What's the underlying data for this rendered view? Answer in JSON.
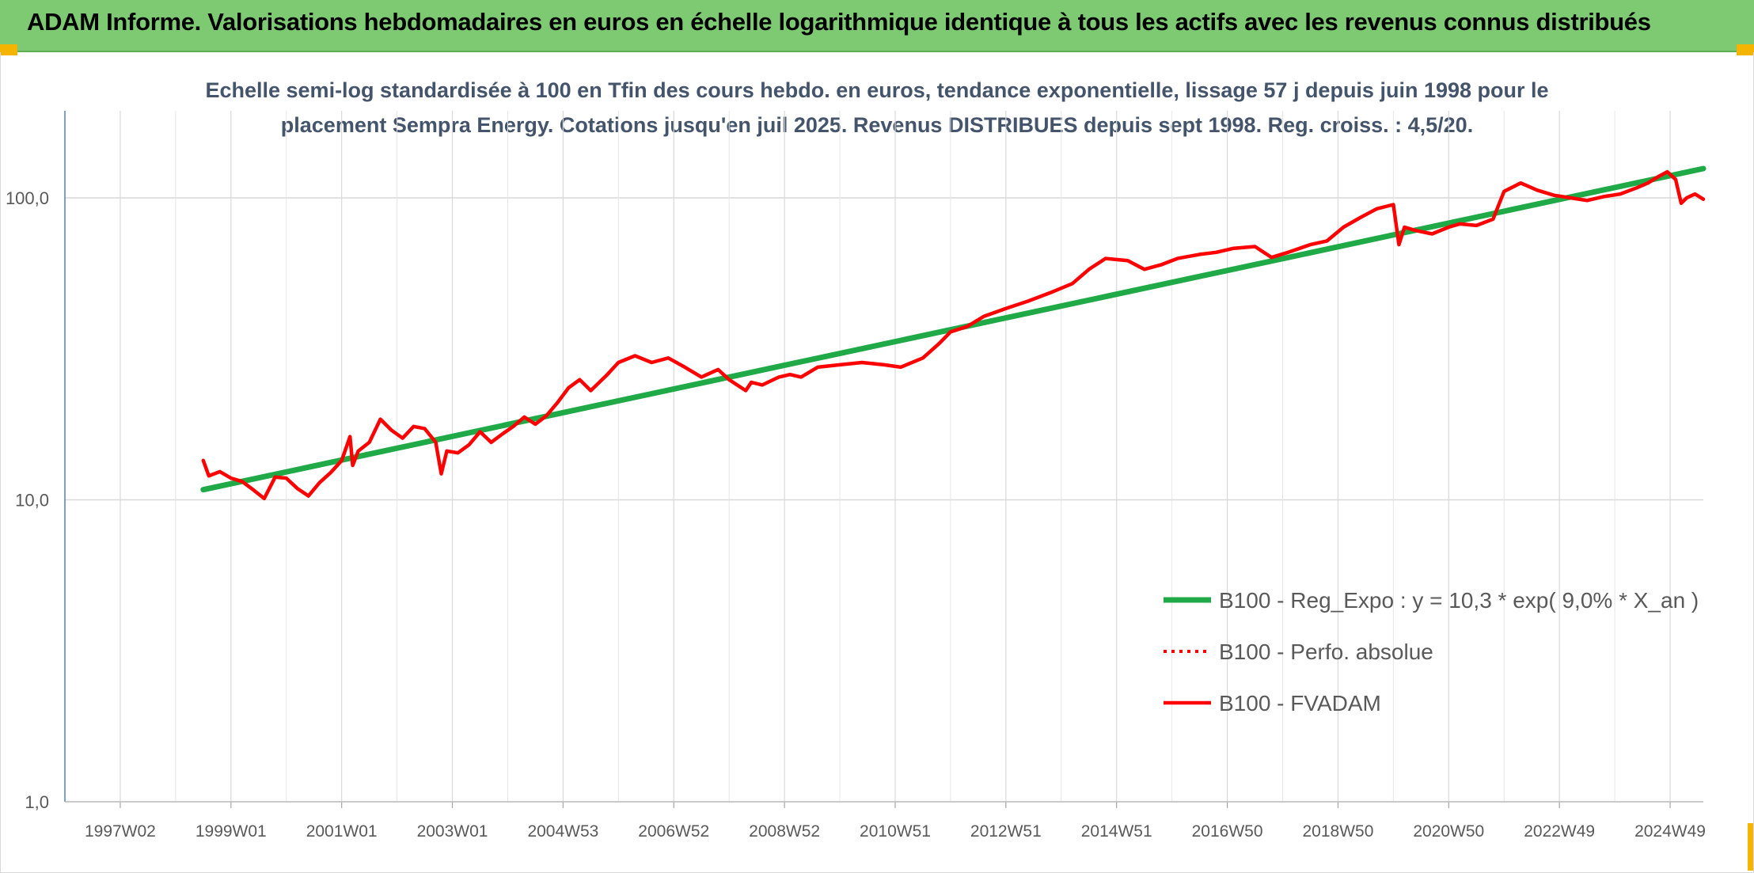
{
  "header": {
    "title": "ADAM Informe. Valorisations hebdomadaires en euros en échelle logarithmique identique à tous les actifs avec les revenus connus distribués"
  },
  "colors": {
    "header_bg": "#7dca72",
    "regression": "#1faa47",
    "fvadam": "#ff0000",
    "perfo": "#ff0000",
    "grid": "#d9d9d9",
    "axis_text": "#595959",
    "subtitle": "#44546a"
  },
  "chart_data": {
    "type": "line",
    "subtitle_lines": [
      "Echelle semi-log standardisée à 100 en Tfin des cours hebdo. en euros, tendance exponentielle, lissage 57 j depuis juin 1998 pour le",
      "placement Sempra Energy. Cotations jusqu'en juil 2025. Revenus DISTRIBUES depuis sept 1998. Reg. croiss. : 4,5/20."
    ],
    "y_scale": "log",
    "ylim": [
      1,
      100
    ],
    "y_ticks": [
      "100,0",
      "10,0",
      "1,0"
    ],
    "y_tick_values": [
      100,
      10,
      1
    ],
    "x_tick_labels": [
      "1997W02",
      "1999W01",
      "2001W01",
      "2003W01",
      "2004W53",
      "2006W52",
      "2008W52",
      "2010W51",
      "2012W51",
      "2014W51",
      "2016W50",
      "2018W50",
      "2020W50",
      "2022W49",
      "2024W49"
    ],
    "x_tick_years": [
      1997.0,
      1999.0,
      2001.0,
      2003.0,
      2005.0,
      2007.0,
      2009.0,
      2011.0,
      2013.0,
      2015.0,
      2017.0,
      2019.0,
      2021.0,
      2023.0,
      2025.0
    ],
    "xlim": [
      1996.0,
      2025.6
    ],
    "grid": "vertical and horizontal",
    "legend_position": "bottom-right",
    "series": [
      {
        "name": "B100 - Reg_Expo : y = 10,3 * exp( 9,0% *  X_an )",
        "style": "solid-thick",
        "x": [
          1998.5,
          2025.6
        ],
        "y": [
          10.8,
          125
        ]
      },
      {
        "name": "B100 - Perfo. absolue",
        "style": "dotted",
        "x": [],
        "y": []
      },
      {
        "name": "B100 - FVADAM",
        "style": "solid",
        "x": [
          1998.5,
          1998.6,
          1998.8,
          1999.0,
          1999.2,
          1999.4,
          1999.6,
          1999.8,
          2000.0,
          2000.2,
          2000.4,
          2000.6,
          2000.8,
          2001.0,
          2001.15,
          2001.2,
          2001.3,
          2001.5,
          2001.7,
          2001.9,
          2002.1,
          2002.3,
          2002.5,
          2002.7,
          2002.8,
          2002.9,
          2003.1,
          2003.3,
          2003.5,
          2003.7,
          2003.9,
          2004.1,
          2004.3,
          2004.5,
          2004.7,
          2004.9,
          2005.1,
          2005.3,
          2005.5,
          2005.8,
          2006.0,
          2006.3,
          2006.6,
          2006.9,
          2007.2,
          2007.5,
          2007.8,
          2008.0,
          2008.3,
          2008.4,
          2008.6,
          2008.9,
          2009.1,
          2009.3,
          2009.6,
          2010.0,
          2010.4,
          2010.8,
          2011.1,
          2011.5,
          2011.8,
          2012.0,
          2012.3,
          2012.6,
          2013.0,
          2013.4,
          2013.8,
          2014.2,
          2014.5,
          2014.8,
          2015.2,
          2015.5,
          2015.8,
          2016.1,
          2016.5,
          2016.8,
          2017.1,
          2017.5,
          2017.8,
          2018.1,
          2018.5,
          2018.8,
          2019.1,
          2019.4,
          2019.7,
          2020.0,
          2020.1,
          2020.2,
          2020.4,
          2020.7,
          2021.0,
          2021.2,
          2021.5,
          2021.8,
          2022.0,
          2022.3,
          2022.6,
          2022.9,
          2023.2,
          2023.5,
          2023.8,
          2024.1,
          2024.4,
          2024.6,
          2024.8,
          2024.95,
          2025.1,
          2025.2,
          2025.3,
          2025.45,
          2025.6
        ],
        "y": [
          13.5,
          12.0,
          12.4,
          11.8,
          11.5,
          10.8,
          10.1,
          11.9,
          11.8,
          10.9,
          10.3,
          11.4,
          12.3,
          13.5,
          16.2,
          13.0,
          14.5,
          15.5,
          18.5,
          17.0,
          16.0,
          17.5,
          17.2,
          15.5,
          12.2,
          14.5,
          14.3,
          15.2,
          16.8,
          15.5,
          16.5,
          17.5,
          18.8,
          17.8,
          19.0,
          21.0,
          23.5,
          25.0,
          23.0,
          26.0,
          28.5,
          30.0,
          28.5,
          29.5,
          27.5,
          25.5,
          27.0,
          25.0,
          23.0,
          24.5,
          24.0,
          25.5,
          26.0,
          25.5,
          27.5,
          28.0,
          28.5,
          28.0,
          27.5,
          29.5,
          33.0,
          36.0,
          37.5,
          40.5,
          43.0,
          45.5,
          48.5,
          52.0,
          58.0,
          63.0,
          62.0,
          58.0,
          60.0,
          63.0,
          65.0,
          66.0,
          68.0,
          69.0,
          63.5,
          66.0,
          70.0,
          72.0,
          80.0,
          86.0,
          92.0,
          95.0,
          70.0,
          80.0,
          78.0,
          76.0,
          80.0,
          82.0,
          81.0,
          85.0,
          105.0,
          112.0,
          106.0,
          102.0,
          100.0,
          98.0,
          101.0,
          103.0,
          108.0,
          112.0,
          118.0,
          122.0,
          115.0,
          96.0,
          100.0,
          103.0,
          99.0
        ]
      }
    ]
  }
}
